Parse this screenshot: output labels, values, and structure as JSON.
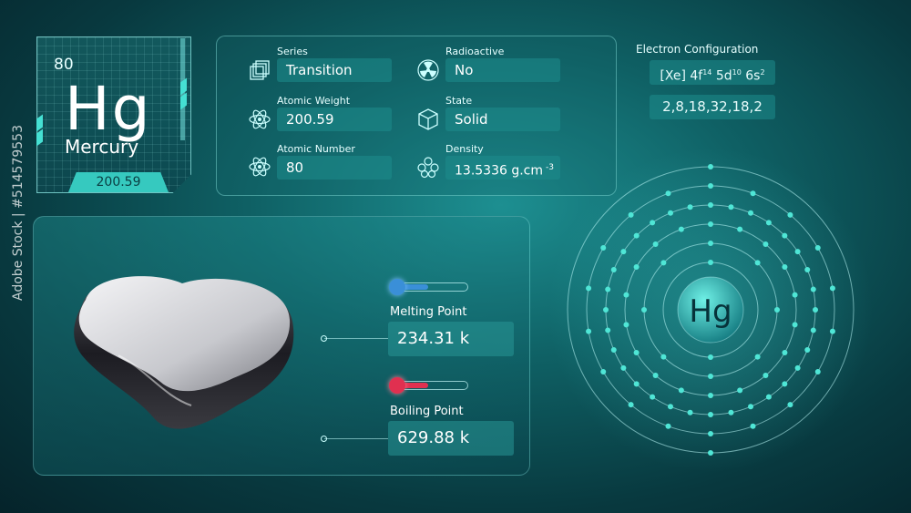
{
  "element": {
    "atomic_number": "80",
    "symbol": "Hg",
    "name": "Mercury",
    "weight": "200.59"
  },
  "properties": {
    "series_label": "Series",
    "series_value": "Transition",
    "weight_label": "Atomic Weight",
    "weight_value": "200.59",
    "number_label": "Atomic Number",
    "number_value": "80",
    "radioactive_label": "Radioactive",
    "radioactive_value": "No",
    "state_label": "State",
    "state_value": "Solid",
    "density_label": "Density",
    "density_value": "13.5336 g.cm",
    "density_unit_sup": "-3"
  },
  "electron_config": {
    "title": "Electron Configuration",
    "core": "[Xe] 4f",
    "f_exp": "14",
    "d": " 5d",
    "d_exp": "10",
    "s": " 6s",
    "s_exp": "2",
    "shells": "2,8,18,32,18,2"
  },
  "temperatures": {
    "melting_label": "Melting Point",
    "melting_value": "234.31 k",
    "boiling_label": "Boiling Point",
    "boiling_value": "629.88 k"
  },
  "atom_model": {
    "symbol": "Hg",
    "shell_counts": [
      2,
      8,
      18,
      32,
      18,
      2
    ]
  },
  "watermark": "Adobe Stock | #514579553",
  "colors": {
    "accent": "#36c9bf",
    "melting": "#3a8fd8",
    "boiling": "#e03050",
    "electron": "#4fe6d6"
  }
}
